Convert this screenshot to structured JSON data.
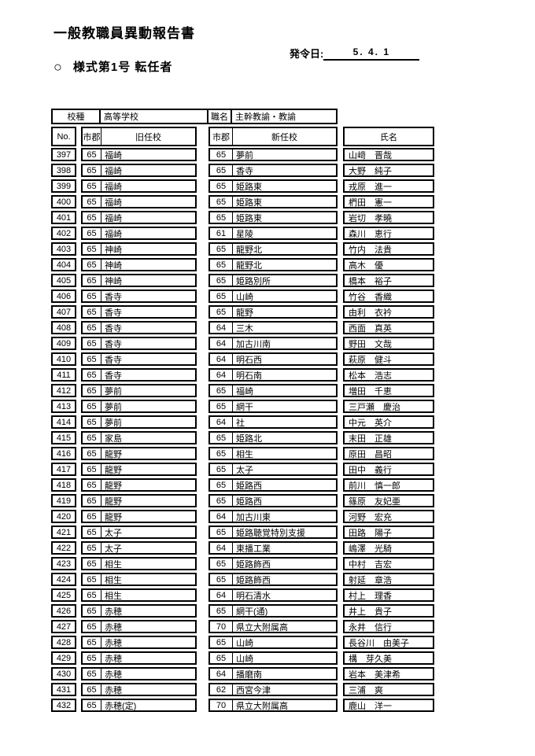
{
  "page": {
    "title": "一般教職員異動報告書",
    "issue_date_label": "発令日:",
    "issue_date_value": "5. 4. 1",
    "form_marker": "○",
    "form_label": "様式第1号 転任者"
  },
  "table": {
    "meta": {
      "school_type_label": "校種",
      "school_type_value": "高等学校",
      "position_label": "職名",
      "position_value": "主幹教諭・教諭"
    },
    "columns": [
      "No.",
      "市郡",
      "旧任校",
      "市郡",
      "新任校",
      "氏名"
    ],
    "rows": [
      {
        "no": "397",
        "old_city": "65",
        "old_school": "福崎",
        "new_city": "65",
        "new_school": "夢前",
        "name": "山﨑　晋哉"
      },
      {
        "no": "398",
        "old_city": "65",
        "old_school": "福崎",
        "new_city": "65",
        "new_school": "香寺",
        "name": "大野　純子"
      },
      {
        "no": "399",
        "old_city": "65",
        "old_school": "福崎",
        "new_city": "65",
        "new_school": "姫路東",
        "name": "戎原　進一"
      },
      {
        "no": "400",
        "old_city": "65",
        "old_school": "福崎",
        "new_city": "65",
        "new_school": "姫路東",
        "name": "椚田　憲一"
      },
      {
        "no": "401",
        "old_city": "65",
        "old_school": "福崎",
        "new_city": "65",
        "new_school": "姫路東",
        "name": "岩切　孝曉"
      },
      {
        "no": "402",
        "old_city": "65",
        "old_school": "福崎",
        "new_city": "61",
        "new_school": "星陵",
        "name": "森川　恵行"
      },
      {
        "no": "403",
        "old_city": "65",
        "old_school": "神崎",
        "new_city": "65",
        "new_school": "龍野北",
        "name": "竹内　法貴"
      },
      {
        "no": "404",
        "old_city": "65",
        "old_school": "神崎",
        "new_city": "65",
        "new_school": "龍野北",
        "name": "高木　優"
      },
      {
        "no": "405",
        "old_city": "65",
        "old_school": "神崎",
        "new_city": "65",
        "new_school": "姫路別所",
        "name": "橋本　裕子"
      },
      {
        "no": "406",
        "old_city": "65",
        "old_school": "香寺",
        "new_city": "65",
        "new_school": "山崎",
        "name": "竹谷　香織"
      },
      {
        "no": "407",
        "old_city": "65",
        "old_school": "香寺",
        "new_city": "65",
        "new_school": "龍野",
        "name": "由利　衣衿"
      },
      {
        "no": "408",
        "old_city": "65",
        "old_school": "香寺",
        "new_city": "64",
        "new_school": "三木",
        "name": "西面　真英"
      },
      {
        "no": "409",
        "old_city": "65",
        "old_school": "香寺",
        "new_city": "64",
        "new_school": "加古川南",
        "name": "野田　文哉"
      },
      {
        "no": "410",
        "old_city": "65",
        "old_school": "香寺",
        "new_city": "64",
        "new_school": "明石西",
        "name": "萩原　健斗"
      },
      {
        "no": "411",
        "old_city": "65",
        "old_school": "香寺",
        "new_city": "64",
        "new_school": "明石南",
        "name": "松本　浩志"
      },
      {
        "no": "412",
        "old_city": "65",
        "old_school": "夢前",
        "new_city": "65",
        "new_school": "福崎",
        "name": "増田　千恵"
      },
      {
        "no": "413",
        "old_city": "65",
        "old_school": "夢前",
        "new_city": "65",
        "new_school": "網干",
        "name": "三戸瀬　慶治"
      },
      {
        "no": "414",
        "old_city": "65",
        "old_school": "夢前",
        "new_city": "64",
        "new_school": "社",
        "name": "中元　英介"
      },
      {
        "no": "415",
        "old_city": "65",
        "old_school": "家島",
        "new_city": "65",
        "new_school": "姫路北",
        "name": "末田　正雄"
      },
      {
        "no": "416",
        "old_city": "65",
        "old_school": "龍野",
        "new_city": "65",
        "new_school": "相生",
        "name": "原田　昌昭"
      },
      {
        "no": "417",
        "old_city": "65",
        "old_school": "龍野",
        "new_city": "65",
        "new_school": "太子",
        "name": "田中　義行"
      },
      {
        "no": "418",
        "old_city": "65",
        "old_school": "龍野",
        "new_city": "65",
        "new_school": "姫路西",
        "name": "前川　慎一郎"
      },
      {
        "no": "419",
        "old_city": "65",
        "old_school": "龍野",
        "new_city": "65",
        "new_school": "姫路西",
        "name": "篠原　友妃亜"
      },
      {
        "no": "420",
        "old_city": "65",
        "old_school": "龍野",
        "new_city": "64",
        "new_school": "加古川東",
        "name": "河野　宏充"
      },
      {
        "no": "421",
        "old_city": "65",
        "old_school": "太子",
        "new_city": "65",
        "new_school": "姫路聴覚特別支援",
        "name": "田路　陽子"
      },
      {
        "no": "422",
        "old_city": "65",
        "old_school": "太子",
        "new_city": "64",
        "new_school": "東播工業",
        "name": "嶋澤　光騎"
      },
      {
        "no": "423",
        "old_city": "65",
        "old_school": "相生",
        "new_city": "65",
        "new_school": "姫路飾西",
        "name": "中村　吉宏"
      },
      {
        "no": "424",
        "old_city": "65",
        "old_school": "相生",
        "new_city": "65",
        "new_school": "姫路飾西",
        "name": "射延　章浩"
      },
      {
        "no": "425",
        "old_city": "65",
        "old_school": "相生",
        "new_city": "64",
        "new_school": "明石清水",
        "name": "村上　理香"
      },
      {
        "no": "426",
        "old_city": "65",
        "old_school": "赤穂",
        "new_city": "65",
        "new_school": "網干(通)",
        "name": "井上　貴子"
      },
      {
        "no": "427",
        "old_city": "65",
        "old_school": "赤穂",
        "new_city": "70",
        "new_school": "県立大附属高",
        "name": "永井　信行"
      },
      {
        "no": "428",
        "old_city": "65",
        "old_school": "赤穂",
        "new_city": "65",
        "new_school": "山崎",
        "name": "長谷川　由美子"
      },
      {
        "no": "429",
        "old_city": "65",
        "old_school": "赤穂",
        "new_city": "65",
        "new_school": "山崎",
        "name": "構　芽久美"
      },
      {
        "no": "430",
        "old_city": "65",
        "old_school": "赤穂",
        "new_city": "64",
        "new_school": "播磨南",
        "name": "岩本　美津希"
      },
      {
        "no": "431",
        "old_city": "65",
        "old_school": "赤穂",
        "new_city": "62",
        "new_school": "西宮今津",
        "name": "三浦　爽"
      },
      {
        "no": "432",
        "old_city": "65",
        "old_school": "赤穂(定)",
        "new_city": "70",
        "new_school": "県立大附属高",
        "name": "鹿山　洋一"
      }
    ]
  }
}
